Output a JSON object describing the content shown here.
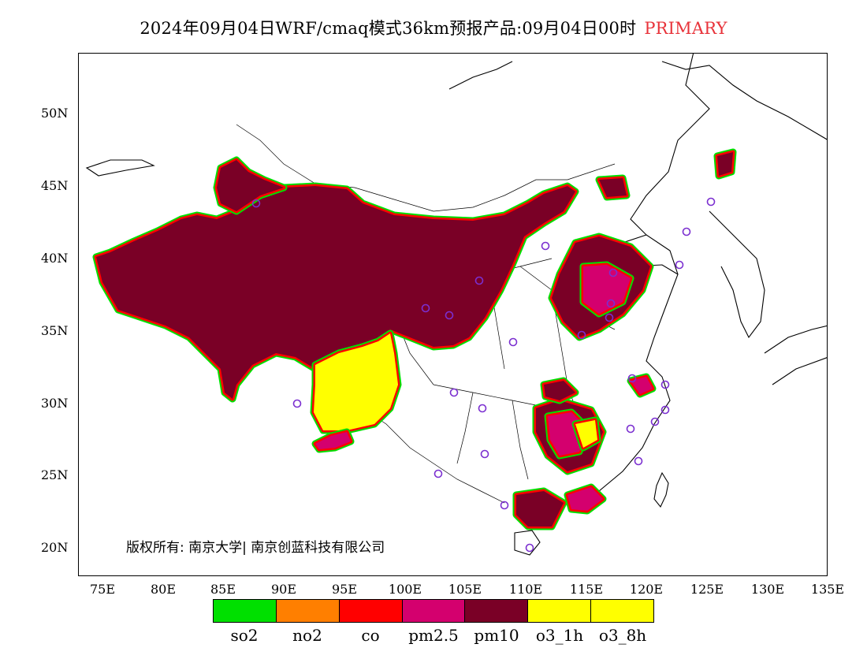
{
  "title": {
    "main": "2024年09月04日WRF/cmaq模式36km预报产品:09月04日00时",
    "tag": "PRIMARY",
    "tag_color": "#e8333a"
  },
  "map": {
    "lon_range": [
      73,
      135
    ],
    "lat_range": [
      18,
      54
    ],
    "y_ticks": [
      "50N",
      "45N",
      "40N",
      "35N",
      "30N",
      "25N",
      "20N"
    ],
    "x_ticks": [
      "75E",
      "80E",
      "85E",
      "90E",
      "95E",
      "100E",
      "105E",
      "110E",
      "115E",
      "120E",
      "125E",
      "130E",
      "135E"
    ],
    "copyright": "版权所有: 南京大学| 南京创蓝科技有限公司",
    "station_color": "#7b2fd0"
  },
  "legend": {
    "items": [
      {
        "label": "so2",
        "color": "#00e000"
      },
      {
        "label": "no2",
        "color": "#ff7f00"
      },
      {
        "label": "co",
        "color": "#ff0000"
      },
      {
        "label": "pm2.5",
        "color": "#d4006e"
      },
      {
        "label": "pm10",
        "color": "#7a0026"
      },
      {
        "label": "o3_1h",
        "color": "#ffff00"
      },
      {
        "label": "o3_8h",
        "color": "#ffff00"
      }
    ]
  }
}
